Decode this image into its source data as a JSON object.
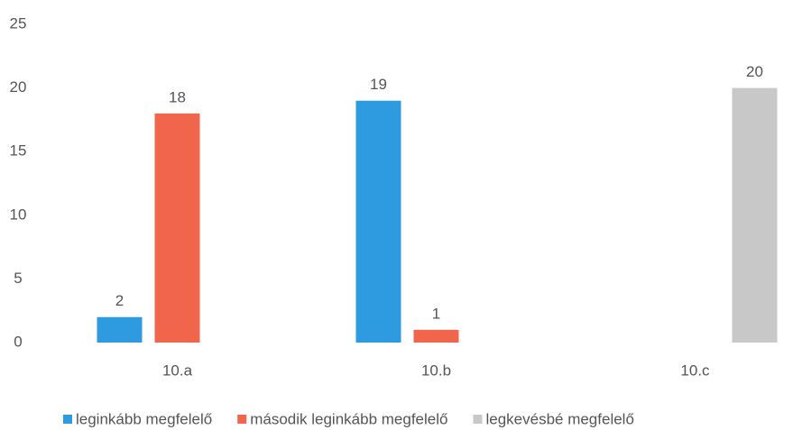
{
  "chart_data": {
    "type": "bar",
    "categories": [
      "10.a",
      "10.b",
      "10.c"
    ],
    "series": [
      {
        "name": "leginkább megfelelő",
        "color": "#2e9be0",
        "values": [
          2,
          19,
          null
        ]
      },
      {
        "name": "második leginkább megfelelő",
        "color": "#f0654b",
        "values": [
          18,
          1,
          null
        ]
      },
      {
        "name": "legkevésbé megfelelő",
        "color": "#c8c8c8",
        "values": [
          null,
          null,
          20
        ]
      }
    ],
    "ylim": [
      0,
      25
    ],
    "yticks": [
      0,
      5,
      10,
      15,
      20,
      25
    ],
    "grid": false,
    "legend": "bottom"
  }
}
